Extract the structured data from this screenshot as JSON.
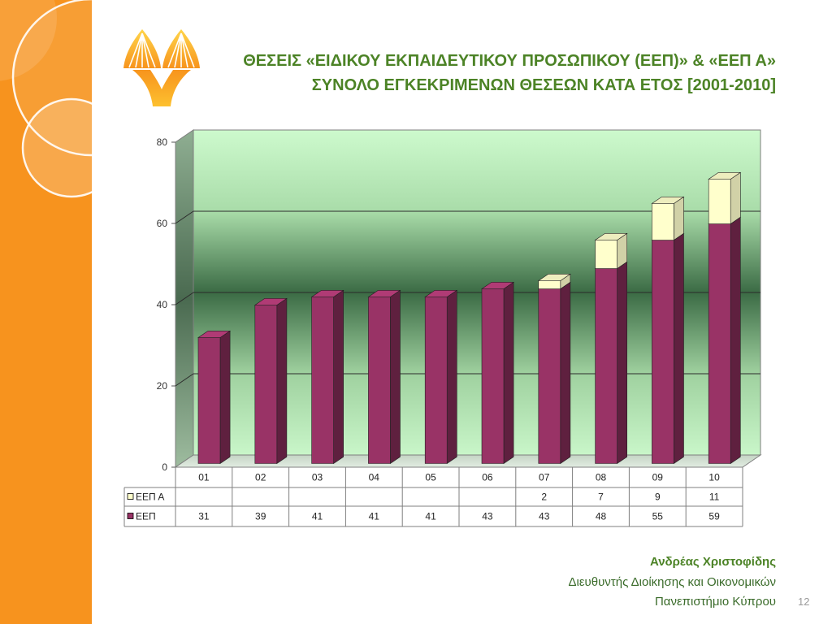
{
  "slide": {
    "title_line1": "ΘΕΣΕΙΣ «ΕΙΔΙΚΟΥ ΕΚΠΑΙΔΕΥΤΙΚΟΥ ΠΡΟΣΩΠΙΚΟΥ (ΕΕΠ)» & «ΕΕΠ Α»",
    "title_line2": "ΣΥΝΟΛΟ ΕΓΚΕΚΡΙΜΕΝΩΝ ΘΕΣΕΩΝ ΚΑΤΑ ΕΤΟΣ [2001-2010]",
    "page_number": "12",
    "logo_icon": "university-tree-logo-icon"
  },
  "footer": {
    "name": "Ανδρέας Χριστοφίδης",
    "position": "Διευθυντής Διοίκησης και Οικονομικών",
    "organization": "Πανεπιστήμιο Κύπρου"
  },
  "theme": {
    "sidebar_color": "#F7931E",
    "title_color": "#4C8326",
    "footer_color": "#3A6B2A"
  },
  "chart_data": {
    "type": "bar",
    "stacked": true,
    "style": "3d",
    "categories": [
      "01",
      "02",
      "03",
      "04",
      "05",
      "06",
      "07",
      "08",
      "09",
      "10"
    ],
    "series": [
      {
        "name": "ΕΕΠ",
        "values": [
          31,
          39,
          41,
          41,
          41,
          43,
          43,
          48,
          55,
          59
        ],
        "color": "#993366"
      },
      {
        "name": "ΕΕΠ Α",
        "values": [
          null,
          null,
          null,
          null,
          null,
          null,
          2,
          7,
          9,
          11
        ],
        "color": "#FFFFCC"
      }
    ],
    "yticks": [
      0,
      20,
      40,
      60,
      80
    ],
    "ylim": [
      0,
      80
    ],
    "grid": true,
    "data_table": true,
    "legend": "left"
  }
}
